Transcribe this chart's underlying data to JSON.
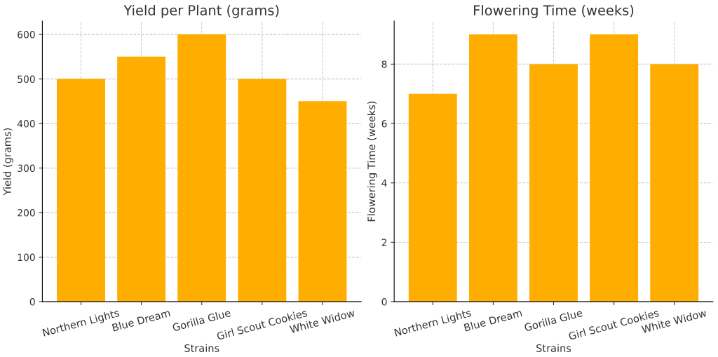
{
  "chart_data": [
    {
      "type": "bar",
      "title": "Yield per Plant (grams)",
      "xlabel": "Strains",
      "ylabel": "Yield (grams)",
      "categories": [
        "Northern Lights",
        "Blue Dream",
        "Gorilla Glue",
        "Girl Scout Cookies",
        "White Widow"
      ],
      "values": [
        500,
        550,
        600,
        500,
        450
      ],
      "color": "#ffad00",
      "ylim": [
        0,
        630
      ],
      "yticks": [
        0,
        100,
        200,
        300,
        400,
        500,
        600
      ],
      "grid": true
    },
    {
      "type": "bar",
      "title": "Flowering Time (weeks)",
      "xlabel": "Strains",
      "ylabel": "Flowering Time (weeks)",
      "categories": [
        "Northern Lights",
        "Blue Dream",
        "Gorilla Glue",
        "Girl Scout Cookies",
        "White Widow"
      ],
      "values": [
        7,
        9,
        8,
        9,
        8
      ],
      "color": "#ffad00",
      "ylim": [
        0,
        9.45
      ],
      "yticks": [
        0,
        2,
        4,
        6,
        8
      ],
      "grid": true
    }
  ]
}
